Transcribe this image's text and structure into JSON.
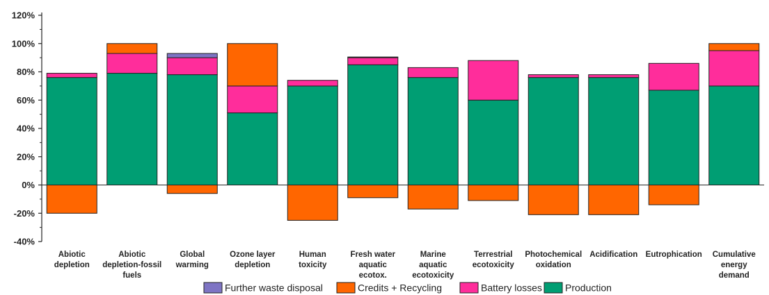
{
  "chart_data": {
    "type": "bar",
    "stacked": true,
    "categories": [
      "Abiotic depletion",
      "Abiotic depletion-fossil fuels",
      "Global warming",
      "Ozone layer depletion",
      "Human toxicity",
      "Fresh water aquatic ecotox.",
      "Marine aquatic ecotoxicity",
      "Terrestrial ecotoxicity",
      "Photochemical oxidation",
      "Acidification",
      "Eutrophication",
      "Cumulative energy demand"
    ],
    "category_label_lines": [
      [
        "Abiotic",
        "depletion"
      ],
      [
        "Abiotic",
        "depletion-fossil",
        "fuels"
      ],
      [
        "Global",
        "warming"
      ],
      [
        "Ozone layer",
        "depletion"
      ],
      [
        "Human",
        "toxicity"
      ],
      [
        "Fresh water",
        "aquatic",
        "ecotox."
      ],
      [
        "Marine",
        "aquatic",
        "ecotoxicity"
      ],
      [
        "Terrestrial",
        "ecotoxicity"
      ],
      [
        "Photochemical",
        "oxidation"
      ],
      [
        "Acidification"
      ],
      [
        "Eutrophication"
      ],
      [
        "Cumulative",
        "energy",
        "demand"
      ]
    ],
    "series": [
      {
        "name": "Production",
        "color": "#009E73",
        "values": [
          76,
          79,
          78,
          51,
          70,
          85,
          76,
          60,
          76,
          76,
          67,
          70
        ]
      },
      {
        "name": "Battery losses",
        "color": "#FF2D9B",
        "values": [
          3,
          14,
          12,
          19,
          4,
          5,
          7,
          28,
          2,
          2,
          19,
          25
        ]
      },
      {
        "name": "Credits + Recycling",
        "color": "#FF6600",
        "values": [
          -20,
          7,
          -6,
          30,
          -25,
          -9,
          -17,
          -11,
          -21,
          -21,
          -14,
          5
        ]
      },
      {
        "name": "Further waste disposal",
        "color": "#7E74C4",
        "values": [
          0,
          0,
          3,
          0,
          0,
          0.5,
          0,
          0,
          0,
          0,
          0,
          0
        ]
      }
    ],
    "legend_order": [
      "Further waste disposal",
      "Credits + Recycling",
      "Battery losses",
      "Production"
    ],
    "ylim": [
      -40,
      120
    ],
    "yticks": [
      -40,
      -20,
      0,
      20,
      40,
      60,
      80,
      100,
      120
    ],
    "ytick_suffix": "%",
    "legend_position": "bottom",
    "grid": false,
    "xlabel": "",
    "ylabel": ""
  }
}
